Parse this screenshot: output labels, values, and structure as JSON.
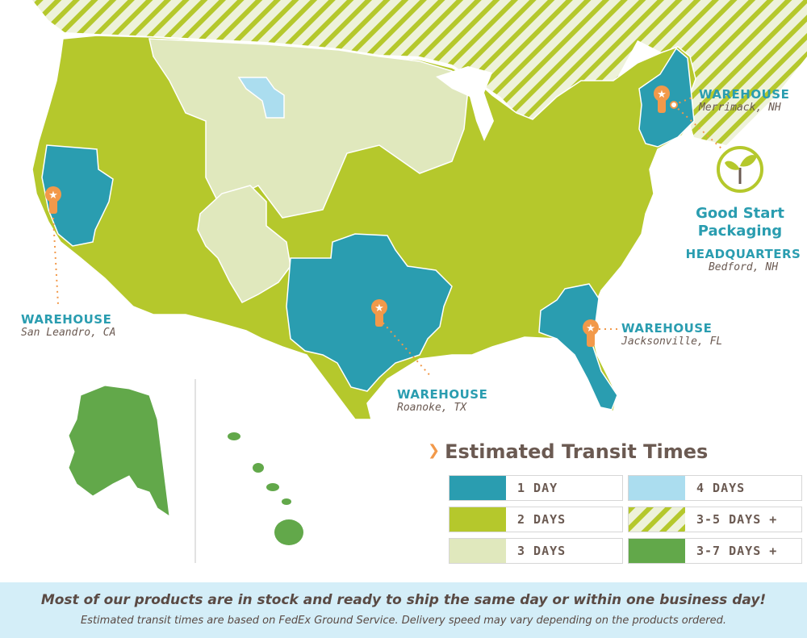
{
  "colors": {
    "one_day": "#2a9db0",
    "two_days": "#b5c82c",
    "three_days": "#e0e8bd",
    "four_days": "#abddef",
    "three_five_days": "#b5c82c",
    "three_seven_days": "#62a84a",
    "orange": "#f2994a",
    "brand_text": "#6b5a52"
  },
  "map": {
    "region": "Continental United States, Alaska, Hawaii",
    "region_code": "US",
    "warehouses": [
      {
        "id": "san-leandro",
        "title": "WAREHOUSE",
        "city": "San Leandro, CA",
        "icon": "star-marker-icon"
      },
      {
        "id": "merrimack",
        "title": "WAREHOUSE",
        "city": "Merrimack, NH",
        "icon": "star-marker-icon"
      },
      {
        "id": "roanoke",
        "title": "WAREHOUSE",
        "city": "Roanoke, TX",
        "icon": "star-marker-icon"
      },
      {
        "id": "jacksonville",
        "title": "WAREHOUSE",
        "city": "Jacksonville, FL",
        "icon": "star-marker-icon"
      }
    ],
    "headquarters": {
      "logo_icon": "sprout-icon",
      "brand_line1": "Good Start",
      "brand_line2": "Packaging",
      "title": "HEADQUARTERS",
      "city": "Bedford, NH"
    }
  },
  "legend": {
    "title": "Estimated Transit Times",
    "items": [
      {
        "label": "1 DAY",
        "color": "#2a9db0",
        "pattern": "solid"
      },
      {
        "label": "4 DAYS",
        "color": "#abddef",
        "pattern": "solid"
      },
      {
        "label": "2 DAYS",
        "color": "#b5c82c",
        "pattern": "solid"
      },
      {
        "label": "3-5 DAYS +",
        "color": "#b5c82c",
        "pattern": "hatched"
      },
      {
        "label": "3 DAYS",
        "color": "#e0e8bd",
        "pattern": "solid"
      },
      {
        "label": "3-7 DAYS +",
        "color": "#62a84a",
        "pattern": "solid"
      }
    ]
  },
  "banner": {
    "line1": "Most of our products are in stock and ready to ship the same day or within one business day!",
    "line2": "Estimated transit times are based on FedEx Ground Service. Delivery speed may vary depending on the products ordered."
  }
}
